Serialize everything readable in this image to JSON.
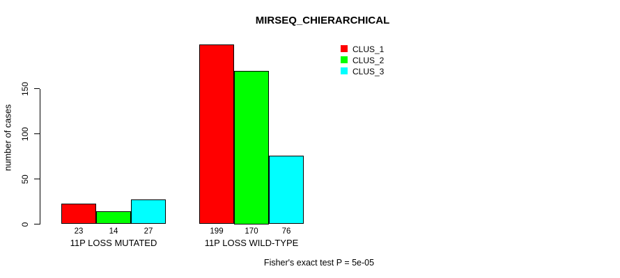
{
  "title": "MIRSEQ_CHIERARCHICAL",
  "y_axis": {
    "label": "number of cases",
    "ticks": [
      0,
      50,
      100,
      150
    ]
  },
  "annotation": "Fisher's exact test P = 5e-05",
  "legend": {
    "items": [
      {
        "label": "CLUS_1",
        "color": "#ff0000"
      },
      {
        "label": "CLUS_2",
        "color": "#00ff00"
      },
      {
        "label": "CLUS_3",
        "color": "#00ffff"
      }
    ]
  },
  "chart_data": {
    "type": "bar",
    "title": "MIRSEQ_CHIERARCHICAL",
    "xlabel": "",
    "ylabel": "number of cases",
    "categories": [
      "11P LOSS MUTATED",
      "11P LOSS WILD-TYPE"
    ],
    "series": [
      {
        "name": "CLUS_1",
        "color": "#ff0000",
        "values": [
          23,
          199
        ]
      },
      {
        "name": "CLUS_2",
        "color": "#00ff00",
        "values": [
          14,
          170
        ]
      },
      {
        "name": "CLUS_3",
        "color": "#00ffff",
        "values": [
          27,
          76
        ]
      }
    ],
    "bar_value_labels": [
      [
        23,
        14,
        27
      ],
      [
        199,
        170,
        76
      ]
    ],
    "yticks": [
      0,
      50,
      100,
      150
    ],
    "ylim": [
      0,
      150
    ],
    "grid": false,
    "legend_position": "top-right",
    "bar_border_color": "#000000",
    "annotation": "Fisher's exact test P = 5e-05"
  }
}
